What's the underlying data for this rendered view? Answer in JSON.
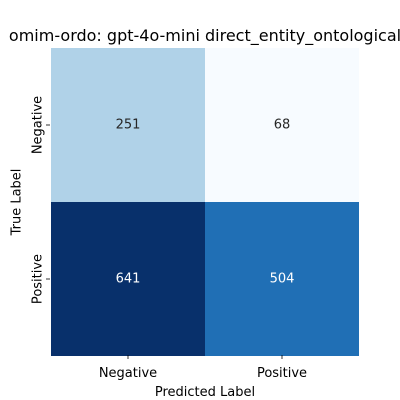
{
  "chart_data": {
    "type": "heatmap",
    "title": "omim-ordo: gpt-4o-mini direct_entity_ontological",
    "xlabel": "Predicted Label",
    "ylabel": "True Label",
    "x_categories": [
      "Negative",
      "Positive"
    ],
    "y_categories": [
      "Negative",
      "Positive"
    ],
    "values": [
      [
        251,
        68
      ],
      [
        641,
        504
      ]
    ],
    "colormap": "Blues",
    "colorbar": false,
    "grid": false
  },
  "colors": {
    "cell_0_0": "#b0d2e8",
    "cell_0_1": "#f7fbff",
    "cell_1_0": "#08306b",
    "cell_1_1": "#206fb5",
    "text_dark": "#262626",
    "text_light": "#ffffff"
  }
}
